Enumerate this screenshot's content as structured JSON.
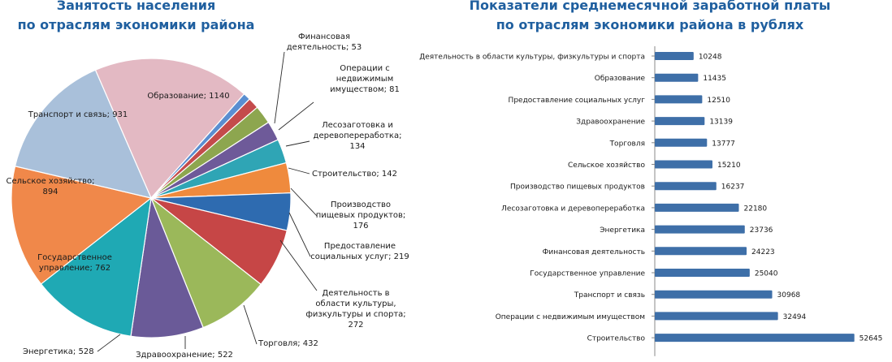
{
  "chart_data": [
    {
      "type": "pie",
      "title": "Занятость населения\nпо отраслям экономики района",
      "title_lines": [
        "Занятость населения",
        "по отраслям экономики района"
      ],
      "slices": [
        {
          "name": "Образование",
          "value": 1140,
          "color": "#e3b9c3",
          "label_lines": [
            "Образование; 1140"
          ]
        },
        {
          "name": "Финансовая деятельность",
          "value": 53,
          "color": "#5a8ed0",
          "label_lines": [
            "Финансовая",
            "деятельность; 53"
          ]
        },
        {
          "name": "Операции с недвижимым имуществом",
          "value": 81,
          "color": "#c44b4b",
          "label_lines": [
            "Операции с",
            "недвижимым",
            "имуществом; 81"
          ]
        },
        {
          "name": "Лесозаготовка и деревопереработка",
          "value": 134,
          "color": "#8da64f",
          "label_lines": [
            "Лесозаготовка и",
            "деревопереработка;",
            "134"
          ]
        },
        {
          "name": "Строительство",
          "value": 142,
          "color": "#6e5a99",
          "label_lines": [
            "Строительство; 142"
          ]
        },
        {
          "name": "Производство пищевых продуктов",
          "value": 176,
          "color": "#2fa5b5",
          "label_lines": [
            "Производство",
            "пищевых продуктов;",
            "176"
          ]
        },
        {
          "name": "Предоставление социальных услуг",
          "value": 219,
          "color": "#ef8a3d",
          "label_lines": [
            "Предоставление",
            "социальных услуг; 219"
          ]
        },
        {
          "name": "Деятельность в области культуры, физкультуры и спорта",
          "value": 272,
          "color": "#2e6bb0",
          "label_lines": [
            "Деятельность в",
            "области культуры,",
            "физкультуры и спорта;",
            "272"
          ]
        },
        {
          "name": "Торговля",
          "value": 432,
          "color": "#c64646",
          "label_lines": [
            "Торговля; 432"
          ]
        },
        {
          "name": "Здравоохранение",
          "value": 522,
          "color": "#9bb85a",
          "label_lines": [
            "Здравоохранение; 522"
          ]
        },
        {
          "name": "Энергетика",
          "value": 528,
          "color": "#6a5a98",
          "label_lines": [
            "Энергетика; 528"
          ]
        },
        {
          "name": "Государственное управление",
          "value": 762,
          "color": "#1fa9b4",
          "label_lines": [
            "Государственное",
            "управление; 762"
          ]
        },
        {
          "name": "Сельское хозяйство",
          "value": 894,
          "color": "#f0884a",
          "label_lines": [
            "Сельское хозяйство;",
            "894"
          ]
        },
        {
          "name": "Транспорт и связь",
          "value": 931,
          "color": "#a9c0da",
          "label_lines": [
            "Транспорт и связь; 931"
          ]
        }
      ]
    },
    {
      "type": "bar",
      "orientation": "horizontal",
      "title": "Показатели среднемесячной заработной платы\nпо отраслям экономики района в рублях",
      "title_lines": [
        "Показатели среднемесячной заработной платы",
        "по отраслям экономики района в рублях"
      ],
      "categories": [
        "Деятельность в области культуры, физкультуры и спорта",
        "Образование",
        "Предоставление социальных услуг",
        "Здравоохранение",
        "Торговля",
        "Сельское хозяйство",
        "Производство пищевых продуктов",
        "Лесозаготовка и деревопереработка",
        "Энергетика",
        "Финансовая деятельность",
        "Государственное управление",
        "Транспорт и связь",
        "Операции с недвижимым имуществом",
        "Строительство"
      ],
      "values": [
        10248,
        11435,
        12510,
        13139,
        13777,
        15210,
        16237,
        22180,
        23736,
        24223,
        25040,
        30968,
        32494,
        52645
      ],
      "bar_color": "#3e6fa8",
      "xlim": [
        0,
        60000
      ]
    }
  ]
}
